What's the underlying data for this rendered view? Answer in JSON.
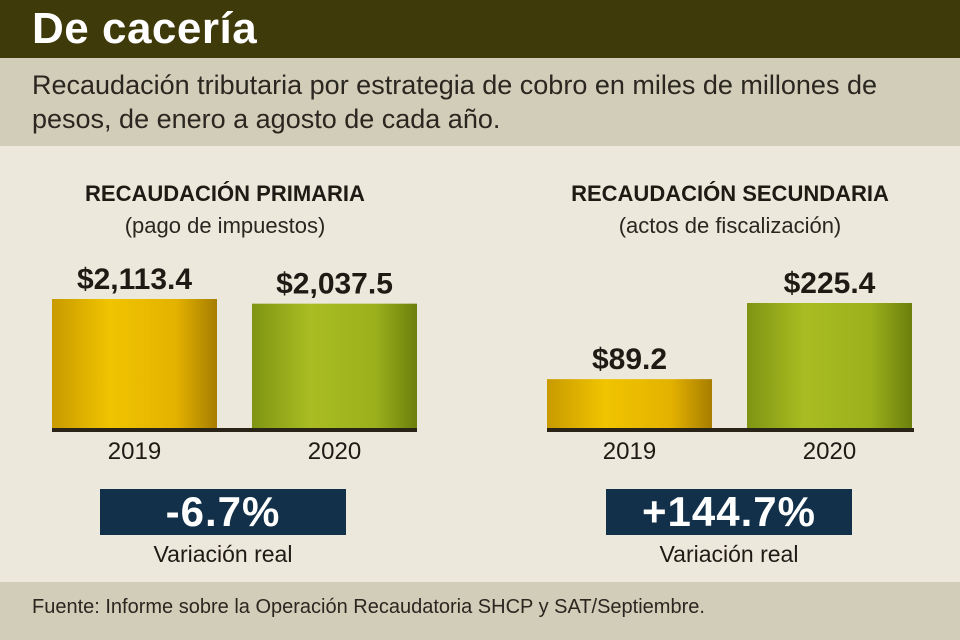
{
  "header": {
    "title": "De cacería",
    "subtitle": "Recaudación tributaria por estrategia de cobro en miles de millones de pesos, de enero a agosto de cada año."
  },
  "colors": {
    "header_bg": "#3f3a0a",
    "bar_2019": "#e1b300",
    "bar_2020": "#9bae1c",
    "badge_bg": "#12304a"
  },
  "chart_data": [
    {
      "type": "bar",
      "title": "RECAUDACIÓN PRIMARIA",
      "subtitle": "(pago de impuestos)",
      "categories": [
        "2019",
        "2020"
      ],
      "values": [
        2113.4,
        2037.5
      ],
      "value_labels": [
        "$2,113.4",
        "$2,037.5"
      ],
      "ylim": [
        0,
        2113.4
      ],
      "variation": "-6.7%",
      "variation_label": "Variación real"
    },
    {
      "type": "bar",
      "title": "RECAUDACIÓN SECUNDARIA",
      "subtitle": "(actos de fiscalización)",
      "categories": [
        "2019",
        "2020"
      ],
      "values": [
        89.2,
        225.4
      ],
      "value_labels": [
        "$89.2",
        "$225.4"
      ],
      "ylim": [
        0,
        225.4
      ],
      "variation": "+144.7%",
      "variation_label": "Variación real"
    }
  ],
  "footer": {
    "source": "Fuente: Informe sobre la Operación Recaudatoria SHCP y SAT/Septiembre."
  }
}
